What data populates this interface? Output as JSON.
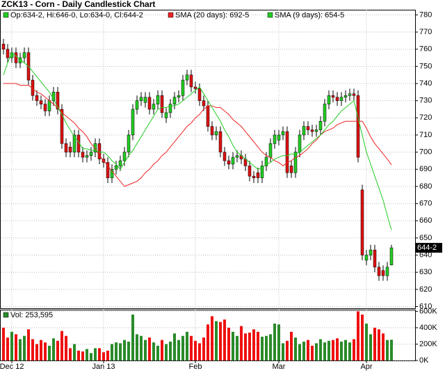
{
  "chart_data": [
    {
      "type": "candlestick",
      "title": "ZCK13 - Corn - Daily Candlestick Chart",
      "legend_text": "Op:634-2, Hi:646-0, Lo:634-0, Cl:644-2",
      "last_label": "644-2",
      "up_color": "#22cc22",
      "down_color": "#dd1111",
      "categories": [
        null,
        null,
        "Dec 12",
        null,
        null,
        null,
        null,
        null,
        null,
        null,
        null,
        null,
        null,
        null,
        null,
        null,
        null,
        null,
        null,
        null,
        null,
        null,
        null,
        null,
        "Jan 13",
        null,
        null,
        null,
        null,
        null,
        null,
        null,
        null,
        null,
        null,
        null,
        null,
        null,
        null,
        null,
        null,
        null,
        null,
        null,
        null,
        null,
        "Feb",
        null,
        null,
        null,
        null,
        null,
        null,
        null,
        null,
        null,
        null,
        null,
        null,
        null,
        null,
        null,
        null,
        null,
        null,
        null,
        "Mar",
        null,
        null,
        null,
        null,
        null,
        null,
        null,
        null,
        null,
        null,
        null,
        null,
        null,
        null,
        null,
        null,
        null,
        null,
        null,
        null,
        "Apr",
        null,
        null,
        null,
        null,
        null,
        null
      ],
      "open": [
        763,
        760,
        755,
        758,
        752,
        755,
        758,
        742,
        733,
        730,
        728,
        724,
        730,
        735,
        725,
        705,
        703,
        700,
        710,
        700,
        697,
        698,
        700,
        705,
        696,
        694,
        685,
        690,
        692,
        695,
        700,
        710,
        725,
        730,
        729,
        732,
        725,
        728,
        733,
        720,
        723,
        728,
        732,
        733,
        742,
        745,
        738,
        737,
        730,
        727,
        715,
        710,
        712,
        700,
        695,
        693,
        697,
        698,
        696,
        692,
        686,
        688,
        685,
        692,
        697,
        705,
        707,
        710,
        712,
        692,
        688,
        700,
        710,
        715,
        713,
        712,
        713,
        718,
        728,
        733,
        732,
        730,
        732,
        733,
        734,
        733,
        678,
        637,
        640,
        643,
        633,
        631,
        628,
        634.25
      ],
      "high": [
        766,
        763,
        761,
        761,
        758,
        761,
        761,
        745,
        736,
        733,
        731,
        733,
        738,
        738,
        728,
        708,
        706,
        713,
        713,
        703,
        701,
        703,
        708,
        708,
        699,
        697,
        693,
        695,
        698,
        703,
        713,
        728,
        733,
        735,
        735,
        735,
        731,
        736,
        736,
        726,
        731,
        735,
        736,
        745,
        748,
        748,
        741,
        740,
        733,
        730,
        718,
        715,
        715,
        703,
        698,
        700,
        701,
        701,
        699,
        695,
        689,
        691,
        695,
        700,
        708,
        713,
        713,
        715,
        715,
        695,
        703,
        713,
        718,
        718,
        716,
        716,
        721,
        731,
        736,
        736,
        735,
        735,
        736,
        737,
        737,
        736,
        681,
        643,
        646,
        646,
        636,
        634,
        636,
        646
      ],
      "low": [
        757,
        752,
        752,
        749,
        749,
        752,
        739,
        730,
        727,
        725,
        721,
        721,
        727,
        722,
        702,
        697,
        697,
        697,
        697,
        694,
        694,
        695,
        697,
        693,
        691,
        682,
        682,
        687,
        689,
        692,
        697,
        707,
        722,
        727,
        726,
        722,
        722,
        725,
        720,
        717,
        720,
        725,
        729,
        730,
        739,
        735,
        734,
        727,
        724,
        712,
        707,
        707,
        697,
        692,
        690,
        690,
        694,
        693,
        689,
        683,
        682,
        682,
        682,
        689,
        694,
        702,
        704,
        707,
        685,
        685,
        685,
        697,
        707,
        710,
        709,
        709,
        710,
        715,
        725,
        729,
        727,
        727,
        729,
        730,
        730,
        694,
        637,
        634,
        637,
        630,
        625,
        625,
        625,
        634
      ],
      "close": [
        760,
        755,
        758,
        752,
        755,
        758,
        742,
        733,
        730,
        728,
        724,
        730,
        735,
        725,
        705,
        700,
        700,
        710,
        700,
        697,
        698,
        700,
        705,
        696,
        694,
        685,
        690,
        692,
        695,
        700,
        710,
        725,
        730,
        732,
        732,
        725,
        728,
        733,
        723,
        723,
        728,
        732,
        733,
        742,
        745,
        738,
        737,
        730,
        727,
        715,
        710,
        712,
        700,
        695,
        693,
        697,
        698,
        696,
        692,
        686,
        685,
        685,
        692,
        697,
        705,
        710,
        710,
        712,
        688,
        688,
        700,
        710,
        715,
        713,
        712,
        713,
        718,
        728,
        733,
        732,
        730,
        732,
        733,
        734,
        733,
        697,
        640,
        640,
        643,
        633,
        628,
        628,
        633,
        644.25
      ],
      "series": [
        {
          "name": "SMA (20 days): 692-5",
          "color": "#ee2222",
          "values": [
            740,
            740,
            740,
            740,
            739,
            739,
            739,
            737,
            735,
            734,
            732,
            730,
            728,
            726,
            723,
            721,
            719,
            717,
            714,
            712,
            709,
            705,
            702,
            698,
            695,
            692,
            689,
            686,
            683,
            680,
            681,
            682,
            683,
            685,
            688,
            690,
            693,
            695,
            698,
            700,
            703,
            706,
            709,
            712,
            715,
            717,
            720,
            722,
            725,
            727,
            727,
            726,
            726,
            724,
            722,
            719,
            717,
            715,
            712,
            709,
            706,
            703,
            700,
            698,
            697,
            695,
            694,
            692,
            694,
            695,
            697,
            698,
            700,
            702,
            705,
            707,
            710,
            712,
            713,
            714,
            716,
            717,
            718,
            718,
            718,
            718,
            718,
            714,
            709,
            705,
            702,
            699,
            696,
            692.625
          ]
        },
        {
          "name": "SMA (9 days): 654-5",
          "color": "#22cc22",
          "values": [
            745,
            752,
            758,
            756,
            754,
            752,
            750,
            747,
            744,
            741,
            738,
            735,
            731,
            726,
            722,
            717,
            713,
            709,
            706,
            702,
            702,
            701,
            701,
            700,
            700,
            698,
            695,
            693,
            690,
            694,
            698,
            701,
            705,
            709,
            713,
            717,
            721,
            725,
            726,
            726,
            727,
            727,
            728,
            730,
            732,
            734,
            736,
            738,
            734,
            730,
            726,
            722,
            718,
            713,
            709,
            704,
            700,
            698,
            696,
            694,
            692,
            690,
            691,
            693,
            694,
            696,
            697,
            698,
            698,
            699,
            699,
            700,
            702,
            704,
            706,
            708,
            710,
            713,
            716,
            718,
            721,
            724,
            726,
            728,
            730,
            720,
            710,
            700,
            693,
            686,
            679,
            672,
            663,
            654.625
          ]
        }
      ],
      "ylim": [
        609,
        783
      ],
      "yticks": [
        610,
        620,
        630,
        640,
        650,
        660,
        670,
        680,
        690,
        700,
        710,
        720,
        730,
        740,
        750,
        760,
        770,
        780
      ],
      "grid": true
    },
    {
      "type": "bar",
      "legend_text": "Vol: 253,595",
      "up_color": "#2a8a2a",
      "down_color": "#ee1111",
      "values": [
        400000,
        280000,
        350000,
        320000,
        260000,
        300000,
        380000,
        260000,
        200000,
        250000,
        220000,
        180000,
        270000,
        240000,
        360000,
        300000,
        150000,
        200000,
        120000,
        110000,
        140000,
        90000,
        150000,
        150000,
        100000,
        120000,
        200000,
        220000,
        210000,
        250000,
        230000,
        560000,
        320000,
        300000,
        250000,
        280000,
        220000,
        180000,
        250000,
        200000,
        230000,
        330000,
        250000,
        300000,
        350000,
        300000,
        240000,
        210000,
        280000,
        440000,
        540000,
        480000,
        470000,
        500000,
        400000,
        350000,
        300000,
        420000,
        330000,
        340000,
        380000,
        350000,
        290000,
        300000,
        320000,
        450000,
        440000,
        210000,
        240000,
        350000,
        280000,
        200000,
        230000,
        250000,
        180000,
        210000,
        260000,
        220000,
        240000,
        250000,
        270000,
        230000,
        250000,
        220000,
        260000,
        600000,
        560000,
        450000,
        320000,
        400000,
        380000,
        330000,
        250000,
        253595
      ],
      "ylim": [
        0,
        620000
      ],
      "yticks": [
        {
          "value": 0,
          "label": "0K"
        },
        {
          "value": 200000,
          "label": "200K"
        },
        {
          "value": 400000,
          "label": "400K"
        },
        {
          "value": 600000,
          "label": "600K"
        }
      ],
      "grid": true
    }
  ]
}
